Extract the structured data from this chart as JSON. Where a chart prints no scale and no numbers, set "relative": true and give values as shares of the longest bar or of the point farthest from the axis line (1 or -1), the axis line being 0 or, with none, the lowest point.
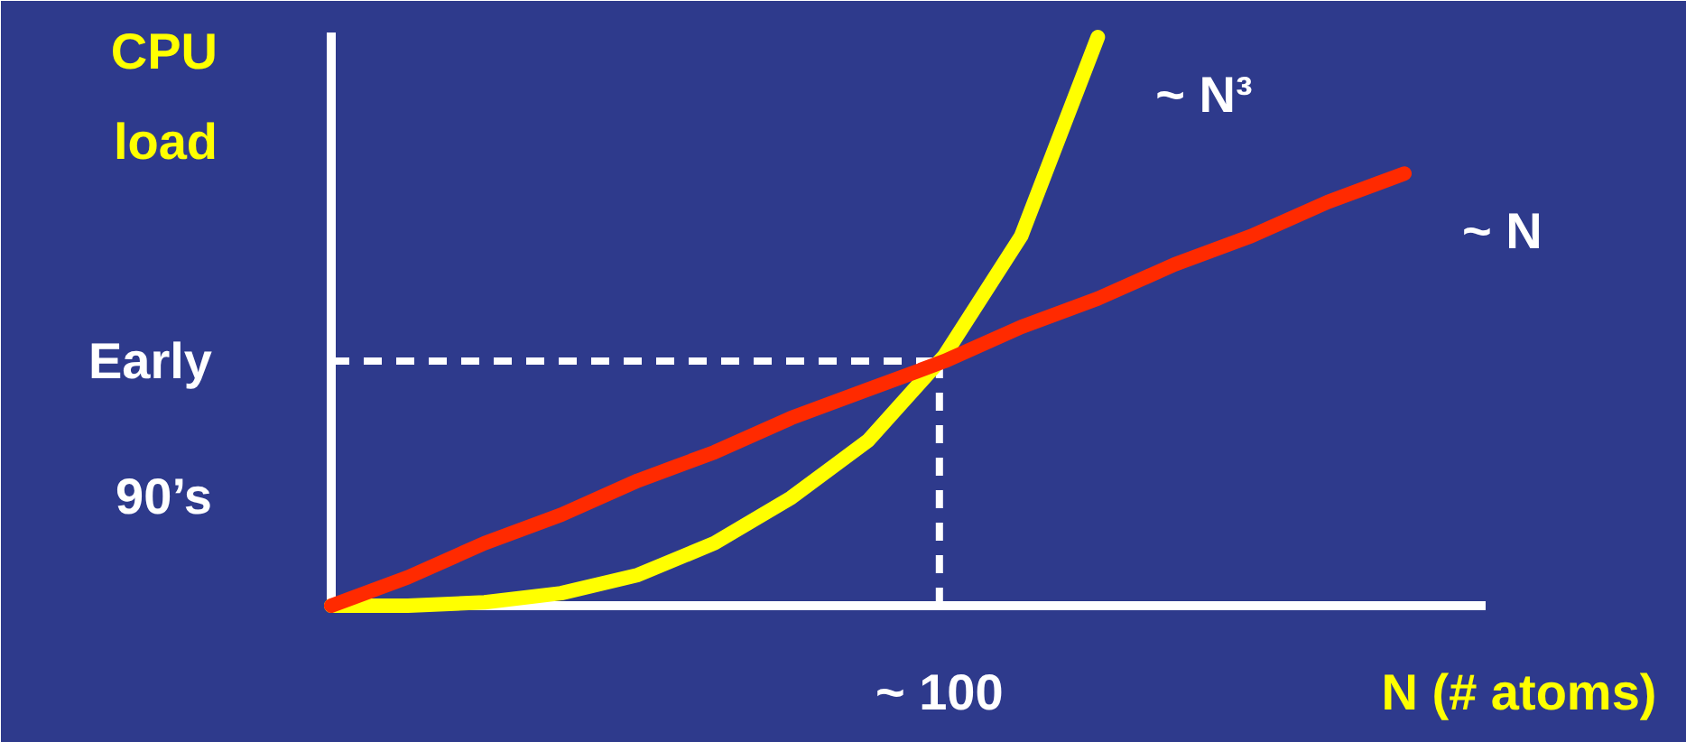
{
  "chart_data": {
    "type": "line",
    "relative": true,
    "xlabel": "N  (# atoms)",
    "ylabel": "CPU\nload",
    "categories": [
      null,
      null,
      null,
      null,
      null,
      null,
      null,
      null,
      null,
      null,
      null,
      null,
      null,
      null,
      null,
      null
    ],
    "series": [
      {
        "name": "~ N³",
        "color": "#ffff00",
        "values": [
          0,
          0,
          0.006,
          0.022,
          0.054,
          0.11,
          0.19,
          0.29,
          0.44,
          0.65,
          1.0,
          null,
          null,
          null,
          null,
          null
        ]
      },
      {
        "name": "~ N",
        "color": "#ff2a00",
        "values": [
          0,
          0.05,
          0.11,
          0.16,
          0.22,
          0.27,
          0.33,
          0.38,
          0.43,
          0.49,
          0.54,
          0.6,
          0.65,
          0.71,
          0.76,
          null
        ]
      }
    ],
    "ref_lines": [
      {
        "axis": "y",
        "value": 0.43,
        "label": "Early\n90’s",
        "color": "#ffffff",
        "line_style": "dashed"
      }
    ],
    "annotations": [
      "~ 100"
    ],
    "grid": false
  }
}
